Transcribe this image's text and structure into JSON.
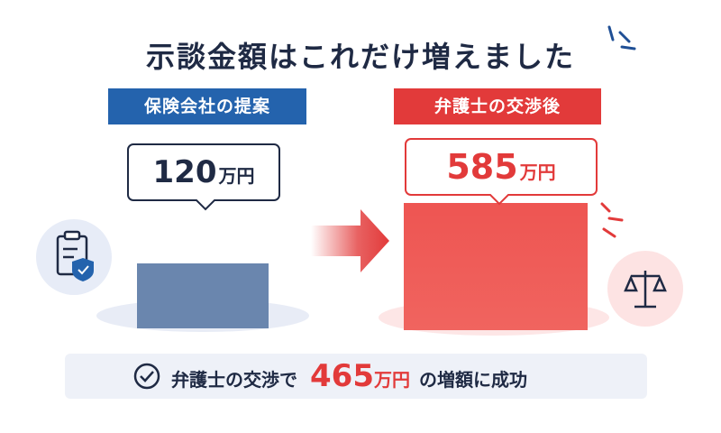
{
  "title": "示談金額はこれだけ増えました",
  "before": {
    "label": "保険会社の提案",
    "amount": 120,
    "unit": "万円"
  },
  "after": {
    "label": "弁護士の交渉後",
    "amount": 585,
    "unit": "万円"
  },
  "summary": {
    "prefix": "弁護士の交渉で",
    "amount": 465,
    "unit": "万円",
    "suffix": "の増額に成功"
  }
}
